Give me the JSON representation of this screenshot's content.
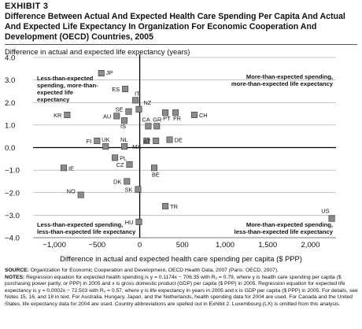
{
  "exhibit": "EXHIBIT 3",
  "title": "Difference Between Actual And Expected Health Care Spending Per Capita And Actual And Expected Life Expectancy In Organization For Economic Cooperation And Development (OECD) Countries, 2005",
  "source_label": "SOURCE:",
  "source_text": "Organization for Economic Cooperation and Development, OECD Health Data, 2007 (Paris: OECD, 2007).",
  "notes_label": "NOTES:",
  "notes_text": "Regression equation for expected health spending is y = 0.1174x − 706.35 with R₂ = 0.79, where y is health care spending per capita ($ purchasing power parity, or PPP) in 2005 and x is gross domestic product (GDP) per capita ($ PPP) in 2005. Regression equation for expected life expectancy is y = 0.0002x − 72.503 with R₂ = 0.57, where y is life expectancy in years in 2005 and x is GDP per capita ($ PPP) in 2005. For details, see Notes 15, 16, and 18 in text. For Australia, Hungary, Japan, and the Netherlands, health spending data for 2004 are used. For Canada and the United States, life expectancy data for 2004 are used. Country abbreviations are spelled out in Exhibit 2. Luxembourg (LX) is omitted from this analysis.",
  "chart_data": {
    "type": "scatter",
    "ylabel": "Difference in actual and expected life expectancy (years)",
    "xlabel": "Difference in actual and expected health care spending per capita ($ PPP)",
    "xlim": [
      -1250,
      2300
    ],
    "ylim": [
      -4.0,
      4.0
    ],
    "xticks": [
      -1000,
      -500,
      0,
      500,
      1000,
      1500,
      2000
    ],
    "xtick_labels": [
      "−1,000",
      "−500",
      "0",
      "500",
      "1,000",
      "1,500",
      "2,000"
    ],
    "yticks": [
      4,
      3,
      2,
      1,
      0,
      -1,
      -2,
      -3,
      -4
    ],
    "ytick_labels": [
      "4.0",
      "3.0",
      "2.0",
      "1.0",
      "0.0",
      "−1.0",
      "−2.0",
      "−3.0",
      "−4.0"
    ],
    "quadrant_labels": {
      "top_left": [
        "Less-than-expected",
        "spending, more-than-",
        "expected life",
        "expectancy"
      ],
      "top_right": [
        "More-than-expected spending,",
        "more-than-expected life expectancy"
      ],
      "bottom_left": [
        "Less-than-expected spending,",
        "less-than-expected life expectancy"
      ],
      "bottom_right": [
        "More-than-expected spending,",
        "less-than-expected life expectancy"
      ]
    },
    "points": [
      {
        "label": "JP",
        "x": -450,
        "y": 3.3
      },
      {
        "label": "ES",
        "x": -170,
        "y": 2.6
      },
      {
        "label": "IT",
        "x": -50,
        "y": 2.1
      },
      {
        "label": "NZ",
        "x": -10,
        "y": 1.7
      },
      {
        "label": "SE",
        "x": -130,
        "y": 1.6
      },
      {
        "label": "KR",
        "x": -850,
        "y": 1.45
      },
      {
        "label": "AU",
        "x": -270,
        "y": 1.4
      },
      {
        "label": "IS",
        "x": -180,
        "y": 1.2
      },
      {
        "label": "PT",
        "x": 300,
        "y": 1.55
      },
      {
        "label": "FR",
        "x": 420,
        "y": 1.55
      },
      {
        "label": "CH",
        "x": 640,
        "y": 1.45
      },
      {
        "label": "CA",
        "x": 100,
        "y": 0.95
      },
      {
        "label": "GR",
        "x": 200,
        "y": 0.95
      },
      {
        "label": "MX",
        "x": 80,
        "y": 0.3
      },
      {
        "label": "AT",
        "x": 190,
        "y": 0.3
      },
      {
        "label": "DE",
        "x": 350,
        "y": 0.35
      },
      {
        "label": "FI",
        "x": -500,
        "y": 0.3
      },
      {
        "label": "UK",
        "x": -400,
        "y": 0.05
      },
      {
        "label": "NL",
        "x": -180,
        "y": 0.05
      },
      {
        "label": "PL",
        "x": -290,
        "y": -0.45
      },
      {
        "label": "CZ",
        "x": -120,
        "y": -0.75
      },
      {
        "label": "BE",
        "x": 170,
        "y": -0.9
      },
      {
        "label": "IE",
        "x": -890,
        "y": -0.9
      },
      {
        "label": "DK",
        "x": -150,
        "y": -1.5
      },
      {
        "label": "SK",
        "x": -20,
        "y": -1.85
      },
      {
        "label": "NO",
        "x": -690,
        "y": -2.1
      },
      {
        "label": "TR",
        "x": 300,
        "y": -2.6
      },
      {
        "label": "HU",
        "x": -10,
        "y": -3.3
      },
      {
        "label": "US",
        "x": 2250,
        "y": -3.15
      }
    ]
  }
}
